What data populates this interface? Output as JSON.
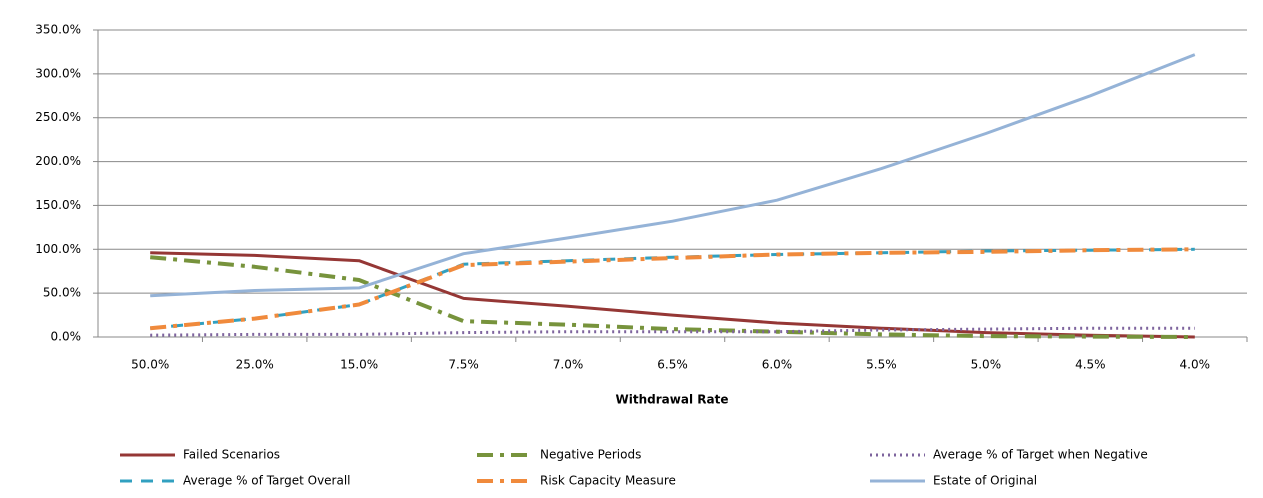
{
  "chart_data": {
    "type": "line",
    "x_label": "Withdrawal Rate",
    "categories": [
      "50.0%",
      "25.0%",
      "15.0%",
      "7.5%",
      "7.0%",
      "6.5%",
      "6.0%",
      "5.5%",
      "5.0%",
      "4.5%",
      "4.0%"
    ],
    "ylim": [
      0,
      350
    ],
    "yticks": [
      {
        "value": 0,
        "label": "0.0%"
      },
      {
        "value": 50,
        "label": "50.0%"
      },
      {
        "value": 100,
        "label": "100.0%"
      },
      {
        "value": 150,
        "label": "150.0%"
      },
      {
        "value": 200,
        "label": "200.0%"
      },
      {
        "value": 250,
        "label": "250.0%"
      },
      {
        "value": 300,
        "label": "300.0%"
      },
      {
        "value": 350,
        "label": "350.0%"
      }
    ],
    "grid": true,
    "legend": "bottom",
    "series": [
      {
        "name": "Failed Scenarios",
        "color": "#953735",
        "style": "solid",
        "values": [
          96,
          93,
          87,
          44,
          35,
          25,
          16,
          10,
          5,
          2,
          0
        ]
      },
      {
        "name": "Negative Periods",
        "color": "#77933c",
        "style": "dashdot",
        "values": [
          91,
          80,
          65,
          18,
          14,
          9,
          6,
          3,
          1,
          0.5,
          0
        ]
      },
      {
        "name": "Average % of Target when Negative",
        "color": "#7e649e",
        "style": "dot",
        "values": [
          2,
          3,
          3,
          5,
          6,
          6,
          6,
          8,
          9,
          10,
          10
        ]
      },
      {
        "name": "Average % of Target Overall",
        "color": "#31a0c0",
        "style": "dash",
        "values": [
          10,
          21,
          37,
          83,
          87,
          91,
          94,
          96,
          98,
          99,
          100
        ]
      },
      {
        "name": "Risk Capacity Measure",
        "color": "#f08a3c",
        "style": "dashdot",
        "values": [
          10,
          21,
          37,
          82,
          86,
          90,
          94,
          96,
          97,
          99,
          100
        ]
      },
      {
        "name": "Estate of Original",
        "color": "#95b3d7",
        "style": "solid",
        "values": [
          47,
          53,
          56,
          95,
          113,
          132,
          156,
          192,
          232,
          275,
          322
        ]
      }
    ]
  }
}
